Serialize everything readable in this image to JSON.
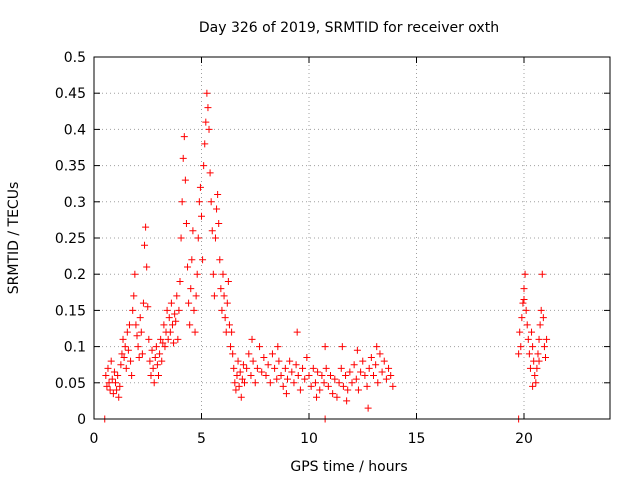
{
  "chart_data": {
    "type": "scatter",
    "title": "Day 326 of 2019, SRMTID for receiver oxth",
    "xlabel": "GPS time / hours",
    "ylabel": "SRMTID / TECUs",
    "xlim": [
      0,
      24
    ],
    "ylim": [
      0,
      0.5
    ],
    "xticks": [
      0,
      5,
      10,
      15,
      20
    ],
    "yticks": [
      0,
      0.05,
      0.1,
      0.15,
      0.2,
      0.25,
      0.3,
      0.35,
      0.4,
      0.45,
      0.5
    ],
    "xtick_labels": [
      "0",
      "5",
      "10",
      "15",
      "20"
    ],
    "ytick_labels": [
      "0",
      "0.05",
      "0.1",
      "0.15",
      "0.2",
      "0.25",
      "0.3",
      "0.35",
      "0.4",
      "0.45",
      "0.5"
    ],
    "grid": true,
    "marker": "plus",
    "color": "#ff0000",
    "series": [
      {
        "points": [
          [
            0.55,
            0.06
          ],
          [
            0.6,
            0.045
          ],
          [
            0.65,
            0.07
          ],
          [
            0.7,
            0.05
          ],
          [
            0.75,
            0.04
          ],
          [
            0.8,
            0.08
          ],
          [
            0.85,
            0.055
          ],
          [
            0.9,
            0.035
          ],
          [
            0.95,
            0.065
          ],
          [
            1.0,
            0.05
          ],
          [
            1.05,
            0.04
          ],
          [
            1.1,
            0.06
          ],
          [
            1.15,
            0.03
          ],
          [
            1.2,
            0.045
          ],
          [
            1.25,
            0.075
          ],
          [
            1.3,
            0.09
          ],
          [
            1.35,
            0.11
          ],
          [
            1.4,
            0.085
          ],
          [
            1.45,
            0.1
          ],
          [
            1.5,
            0.07
          ],
          [
            1.55,
            0.12
          ],
          [
            1.6,
            0.095
          ],
          [
            1.65,
            0.13
          ],
          [
            1.7,
            0.08
          ],
          [
            1.75,
            0.06
          ],
          [
            1.8,
            0.15
          ],
          [
            1.85,
            0.17
          ],
          [
            1.9,
            0.2
          ],
          [
            1.95,
            0.13
          ],
          [
            2.0,
            0.115
          ],
          [
            2.05,
            0.1
          ],
          [
            2.1,
            0.085
          ],
          [
            2.15,
            0.14
          ],
          [
            2.2,
            0.12
          ],
          [
            2.25,
            0.09
          ],
          [
            2.3,
            0.16
          ],
          [
            2.35,
            0.24
          ],
          [
            2.4,
            0.265
          ],
          [
            2.45,
            0.21
          ],
          [
            2.5,
            0.155
          ],
          [
            2.55,
            0.11
          ],
          [
            2.6,
            0.08
          ],
          [
            2.65,
            0.06
          ],
          [
            2.7,
            0.095
          ],
          [
            2.75,
            0.07
          ],
          [
            2.8,
            0.05
          ],
          [
            2.85,
            0.085
          ],
          [
            2.9,
            0.1
          ],
          [
            2.95,
            0.075
          ],
          [
            3.0,
            0.06
          ],
          [
            3.05,
            0.09
          ],
          [
            3.1,
            0.11
          ],
          [
            3.15,
            0.08
          ],
          [
            3.2,
            0.105
          ],
          [
            3.25,
            0.13
          ],
          [
            3.3,
            0.1
          ],
          [
            3.35,
            0.12
          ],
          [
            3.4,
            0.15
          ],
          [
            3.45,
            0.11
          ],
          [
            3.5,
            0.14
          ],
          [
            3.55,
            0.12
          ],
          [
            3.6,
            0.16
          ],
          [
            3.65,
            0.13
          ],
          [
            3.7,
            0.105
          ],
          [
            3.75,
            0.145
          ],
          [
            3.8,
            0.135
          ],
          [
            3.85,
            0.17
          ],
          [
            3.9,
            0.11
          ],
          [
            3.95,
            0.15
          ],
          [
            4.0,
            0.19
          ],
          [
            4.05,
            0.25
          ],
          [
            4.1,
            0.3
          ],
          [
            4.15,
            0.36
          ],
          [
            4.2,
            0.39
          ],
          [
            4.25,
            0.33
          ],
          [
            4.3,
            0.27
          ],
          [
            4.35,
            0.21
          ],
          [
            4.4,
            0.16
          ],
          [
            4.45,
            0.13
          ],
          [
            4.5,
            0.18
          ],
          [
            4.55,
            0.22
          ],
          [
            4.6,
            0.26
          ],
          [
            4.65,
            0.15
          ],
          [
            4.7,
            0.12
          ],
          [
            4.75,
            0.17
          ],
          [
            4.8,
            0.2
          ],
          [
            4.85,
            0.25
          ],
          [
            4.9,
            0.3
          ],
          [
            4.95,
            0.32
          ],
          [
            5.0,
            0.28
          ],
          [
            5.05,
            0.22
          ],
          [
            5.1,
            0.35
          ],
          [
            5.15,
            0.38
          ],
          [
            5.2,
            0.41
          ],
          [
            5.25,
            0.45
          ],
          [
            5.3,
            0.43
          ],
          [
            5.35,
            0.4
          ],
          [
            5.4,
            0.34
          ],
          [
            5.45,
            0.3
          ],
          [
            5.5,
            0.26
          ],
          [
            5.55,
            0.2
          ],
          [
            5.6,
            0.17
          ],
          [
            5.65,
            0.25
          ],
          [
            5.7,
            0.29
          ],
          [
            5.75,
            0.31
          ],
          [
            5.8,
            0.27
          ],
          [
            5.85,
            0.22
          ],
          [
            5.9,
            0.18
          ],
          [
            5.95,
            0.15
          ],
          [
            6.0,
            0.2
          ],
          [
            6.05,
            0.17
          ],
          [
            6.1,
            0.14
          ],
          [
            6.15,
            0.12
          ],
          [
            6.2,
            0.16
          ],
          [
            6.25,
            0.19
          ],
          [
            6.3,
            0.13
          ],
          [
            6.35,
            0.1
          ],
          [
            6.4,
            0.12
          ],
          [
            6.45,
            0.09
          ],
          [
            6.5,
            0.07
          ],
          [
            6.55,
            0.05
          ],
          [
            6.6,
            0.04
          ],
          [
            6.65,
            0.06
          ],
          [
            6.7,
            0.08
          ],
          [
            6.75,
            0.045
          ],
          [
            6.8,
            0.065
          ],
          [
            6.85,
            0.03
          ],
          [
            6.9,
            0.055
          ],
          [
            6.95,
            0.075
          ],
          [
            7.0,
            0.05
          ],
          [
            7.1,
            0.07
          ],
          [
            7.2,
            0.09
          ],
          [
            7.3,
            0.06
          ],
          [
            7.4,
            0.08
          ],
          [
            7.5,
            0.05
          ],
          [
            7.6,
            0.07
          ],
          [
            7.7,
            0.1
          ],
          [
            7.8,
            0.065
          ],
          [
            7.9,
            0.085
          ],
          [
            8.0,
            0.06
          ],
          [
            8.1,
            0.075
          ],
          [
            8.2,
            0.05
          ],
          [
            8.3,
            0.09
          ],
          [
            8.4,
            0.07
          ],
          [
            8.5,
            0.055
          ],
          [
            8.6,
            0.08
          ],
          [
            8.7,
            0.06
          ],
          [
            8.8,
            0.045
          ],
          [
            8.9,
            0.07
          ],
          [
            9.0,
            0.055
          ],
          [
            9.1,
            0.08
          ],
          [
            9.2,
            0.065
          ],
          [
            9.3,
            0.05
          ],
          [
            9.4,
            0.075
          ],
          [
            9.5,
            0.06
          ],
          [
            9.6,
            0.04
          ],
          [
            9.7,
            0.07
          ],
          [
            9.8,
            0.055
          ],
          [
            9.9,
            0.085
          ],
          [
            10.0,
            0.06
          ],
          [
            10.1,
            0.045
          ],
          [
            10.2,
            0.07
          ],
          [
            10.3,
            0.05
          ],
          [
            10.4,
            0.065
          ],
          [
            10.5,
            0.04
          ],
          [
            10.6,
            0.06
          ],
          [
            10.7,
            0.05
          ],
          [
            10.8,
            0.07
          ],
          [
            10.9,
            0.045
          ],
          [
            11.0,
            0.06
          ],
          [
            11.1,
            0.035
          ],
          [
            11.2,
            0.055
          ],
          [
            11.3,
            0.03
          ],
          [
            11.4,
            0.05
          ],
          [
            11.5,
            0.07
          ],
          [
            11.6,
            0.045
          ],
          [
            11.7,
            0.06
          ],
          [
            11.8,
            0.04
          ],
          [
            11.9,
            0.065
          ],
          [
            12.0,
            0.05
          ],
          [
            12.1,
            0.075
          ],
          [
            12.2,
            0.055
          ],
          [
            12.3,
            0.04
          ],
          [
            12.4,
            0.065
          ],
          [
            12.5,
            0.08
          ],
          [
            12.6,
            0.06
          ],
          [
            12.7,
            0.045
          ],
          [
            12.8,
            0.07
          ],
          [
            12.9,
            0.085
          ],
          [
            13.0,
            0.06
          ],
          [
            13.1,
            0.075
          ],
          [
            13.2,
            0.05
          ],
          [
            13.3,
            0.09
          ],
          [
            13.4,
            0.065
          ],
          [
            13.5,
            0.08
          ],
          [
            13.6,
            0.055
          ],
          [
            13.7,
            0.07
          ],
          [
            13.8,
            0.06
          ],
          [
            13.9,
            0.045
          ],
          [
            7.35,
            0.11
          ],
          [
            8.55,
            0.1
          ],
          [
            9.45,
            0.12
          ],
          [
            10.75,
            0.1
          ],
          [
            11.55,
            0.1
          ],
          [
            12.25,
            0.095
          ],
          [
            13.15,
            0.1
          ],
          [
            8.95,
            0.035
          ],
          [
            10.35,
            0.03
          ],
          [
            11.75,
            0.025
          ],
          [
            12.75,
            0.015
          ],
          [
            19.8,
            0.12
          ],
          [
            19.85,
            0.1
          ],
          [
            19.9,
            0.14
          ],
          [
            19.95,
            0.16
          ],
          [
            20.0,
            0.18
          ],
          [
            20.05,
            0.2
          ],
          [
            20.1,
            0.15
          ],
          [
            20.15,
            0.13
          ],
          [
            20.2,
            0.11
          ],
          [
            20.25,
            0.09
          ],
          [
            20.3,
            0.07
          ],
          [
            20.35,
            0.12
          ],
          [
            20.4,
            0.1
          ],
          [
            20.45,
            0.08
          ],
          [
            20.5,
            0.06
          ],
          [
            20.55,
            0.05
          ],
          [
            20.6,
            0.07
          ],
          [
            20.65,
            0.09
          ],
          [
            20.7,
            0.11
          ],
          [
            20.75,
            0.13
          ],
          [
            20.8,
            0.15
          ],
          [
            20.85,
            0.2
          ],
          [
            20.9,
            0.14
          ],
          [
            20.95,
            0.1
          ],
          [
            21.0,
            0.085
          ],
          [
            21.05,
            0.11
          ],
          [
            19.75,
            0.09
          ],
          [
            20.0,
            0.165
          ],
          [
            20.4,
            0.045
          ],
          [
            20.7,
            0.08
          ]
        ]
      },
      {
        "points": [
          [
            0.5,
            0.0
          ],
          [
            10.75,
            0.0
          ],
          [
            19.75,
            0.0
          ]
        ]
      }
    ]
  }
}
